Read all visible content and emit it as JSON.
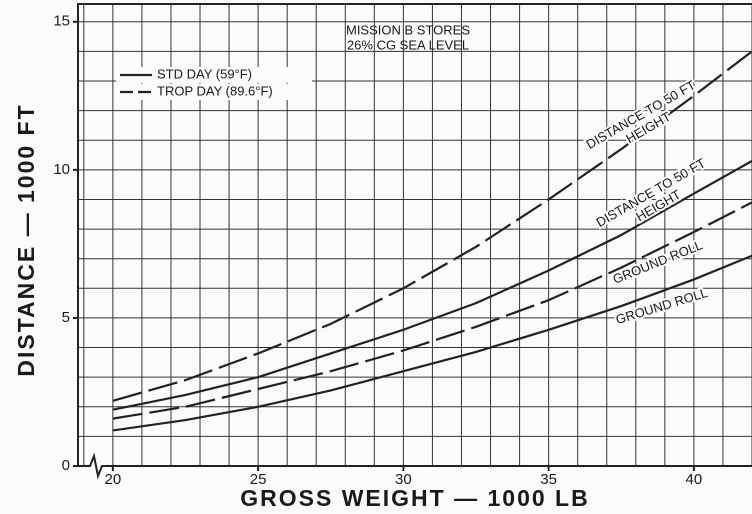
{
  "chart_data": {
    "type": "line",
    "annotation": [
      "MISSION B STORES",
      "26% CG  SEA LEVEL"
    ],
    "xlabel": "GROSS WEIGHT — 1000 LB",
    "ylabel": "DISTANCE — 1000 FT",
    "legend": [
      {
        "name": "STD DAY (59°F)",
        "style": "solid"
      },
      {
        "name": "TROP DAY (89.6°F)",
        "style": "dashed"
      }
    ],
    "x": [
      20,
      22.5,
      25,
      27.5,
      30,
      32.5,
      35,
      37.5,
      40,
      42
    ],
    "series": [
      {
        "label": [
          "DISTANCE TO 50 FT",
          "HEIGHT"
        ],
        "style": "dashed",
        "color": "#222222",
        "values": [
          2.2,
          2.9,
          3.8,
          4.8,
          6.0,
          7.4,
          9.0,
          10.7,
          12.5,
          14.0
        ]
      },
      {
        "label": [
          "DISTANCE TO 50 FT",
          "HEIGHT"
        ],
        "style": "solid",
        "color": "#222222",
        "values": [
          1.9,
          2.4,
          3.0,
          3.8,
          4.6,
          5.5,
          6.6,
          7.8,
          9.2,
          10.3
        ]
      },
      {
        "label": [
          "GROUND ROLL"
        ],
        "style": "dashed",
        "color": "#222222",
        "values": [
          1.6,
          2.0,
          2.6,
          3.2,
          3.9,
          4.7,
          5.6,
          6.7,
          7.9,
          8.9
        ]
      },
      {
        "label": [
          "GROUND ROLL"
        ],
        "style": "solid",
        "color": "#222222",
        "values": [
          1.2,
          1.55,
          2.0,
          2.55,
          3.2,
          3.85,
          4.6,
          5.4,
          6.3,
          7.1
        ]
      }
    ],
    "xlim": [
      18.8,
      42
    ],
    "ylim": [
      0,
      15.6
    ],
    "xticks": [
      20,
      25,
      30,
      35,
      40
    ],
    "yticks": [
      0,
      5,
      10,
      15
    ],
    "xgrid": [
      19,
      20,
      21,
      22,
      23,
      24,
      25,
      26,
      27,
      28,
      29,
      30,
      31,
      32,
      33,
      34,
      35,
      36,
      37,
      38,
      39,
      40,
      41,
      42
    ],
    "ygrid": [
      1,
      2,
      3,
      4,
      5,
      6,
      7,
      8,
      9,
      10,
      11,
      12,
      13,
      14,
      15
    ],
    "grid": true
  }
}
